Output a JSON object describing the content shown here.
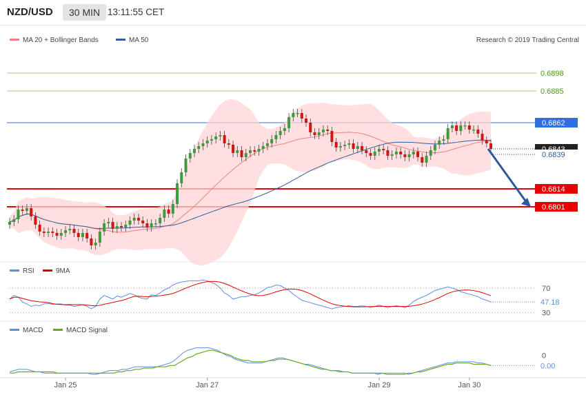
{
  "header": {
    "symbol": "NZD/USD",
    "timeframe": "30 MIN",
    "time": "13:11:55 CET"
  },
  "credit": "Research © 2019 Trading Central",
  "colors": {
    "bullish": "#3d9b3d",
    "bearish": "#d11414",
    "ma20": "#f08080",
    "ma50": "#2f5f9e",
    "band_fill": "#ffd4d4",
    "resistance": "#9bd17a",
    "pivot": "#2e6fe0",
    "support": "#e80000",
    "rsi": "#5f8de0",
    "rsi_ma": "#e00000",
    "macd": "#5f8de0",
    "macd_signal": "#66aa22",
    "arrow": "#2b5aa0",
    "last": "#222222"
  },
  "chart_data": [
    {
      "type": "candlestick",
      "name": "price",
      "legend": [
        "MA 20 + Bollinger Bands",
        "MA 50"
      ],
      "x_ticks": [
        "Jan 25",
        "Jan 27",
        "Jan 29",
        "Jan 30"
      ],
      "ylim": [
        0.6765,
        0.6915
      ],
      "levels": [
        {
          "value": 0.6898,
          "label": "0.6898",
          "kind": "resistance"
        },
        {
          "value": 0.6885,
          "label": "0.6885",
          "kind": "resistance"
        },
        {
          "value": 0.6862,
          "label": "0.6862",
          "kind": "pivot"
        },
        {
          "value": 0.6814,
          "label": "0.6814",
          "kind": "support"
        },
        {
          "value": 0.6801,
          "label": "0.6801",
          "kind": "support"
        }
      ],
      "last_price": "0.6843",
      "ma50_last": "0.6839",
      "forecast_target": 0.6801,
      "closes": [
        0.679,
        0.6792,
        0.6799,
        0.6798,
        0.68,
        0.6794,
        0.6788,
        0.6783,
        0.6782,
        0.6783,
        0.6782,
        0.678,
        0.6782,
        0.6784,
        0.6785,
        0.6782,
        0.6779,
        0.6782,
        0.6778,
        0.6773,
        0.6775,
        0.6783,
        0.6789,
        0.679,
        0.6785,
        0.6787,
        0.6786,
        0.6788,
        0.6791,
        0.6793,
        0.6791,
        0.6789,
        0.6786,
        0.6789,
        0.6789,
        0.6793,
        0.6799,
        0.6796,
        0.6803,
        0.6818,
        0.6826,
        0.6836,
        0.684,
        0.6843,
        0.6845,
        0.6847,
        0.6849,
        0.685,
        0.6852,
        0.6853,
        0.6847,
        0.6846,
        0.684,
        0.6842,
        0.6837,
        0.684,
        0.6842,
        0.6841,
        0.6843,
        0.6845,
        0.6847,
        0.685,
        0.6853,
        0.6856,
        0.6858,
        0.6866,
        0.6869,
        0.6869,
        0.6865,
        0.6862,
        0.6855,
        0.6853,
        0.6855,
        0.6857,
        0.6856,
        0.6848,
        0.6844,
        0.6845,
        0.6846,
        0.6847,
        0.6843,
        0.6845,
        0.6842,
        0.684,
        0.6838,
        0.6841,
        0.6843,
        0.6842,
        0.6838,
        0.6839,
        0.6841,
        0.6839,
        0.6837,
        0.6839,
        0.6841,
        0.6837,
        0.6833,
        0.6838,
        0.6842,
        0.6846,
        0.6849,
        0.685,
        0.6858,
        0.686,
        0.6856,
        0.686,
        0.686,
        0.6857,
        0.6857,
        0.6854,
        0.6849,
        0.6847,
        0.6843
      ],
      "x_tick_index": [
        13,
        46,
        86,
        107
      ]
    },
    {
      "type": "line",
      "name": "RSI",
      "legend": [
        "RSI",
        "9MA"
      ],
      "levels": [
        {
          "value": 70,
          "label": "70"
        },
        {
          "value": 30,
          "label": "30"
        }
      ],
      "ylim": [
        18,
        88
      ],
      "last_value": "47.18",
      "rsi": [
        52,
        58,
        55,
        47,
        44,
        40,
        42,
        41,
        44,
        45,
        43,
        44,
        44,
        42,
        42,
        40,
        41,
        43,
        40,
        36,
        40,
        52,
        58,
        55,
        52,
        57,
        55,
        58,
        61,
        59,
        55,
        53,
        52,
        59,
        58,
        62,
        67,
        70,
        75,
        78,
        80,
        81,
        82,
        82,
        82,
        83,
        82,
        79,
        76,
        70,
        62,
        58,
        52,
        54,
        56,
        56,
        58,
        59,
        62,
        66,
        71,
        72,
        75,
        74,
        70,
        66,
        60,
        55,
        50,
        48,
        46,
        44,
        42,
        40,
        38,
        36,
        38,
        39,
        40,
        41,
        40,
        40,
        41,
        40,
        38,
        40,
        42,
        40,
        38,
        40,
        41,
        40,
        38,
        42,
        48,
        52,
        55,
        58,
        62,
        66,
        68,
        70,
        72,
        70,
        68,
        64,
        62,
        60,
        58,
        56,
        52,
        50,
        47.18
      ]
    },
    {
      "type": "line",
      "name": "MACD",
      "legend": [
        "MACD",
        "MACD Signal"
      ],
      "ylim": [
        -0.0016,
        0.0014
      ],
      "levels": [
        {
          "value": 0,
          "label": "0"
        }
      ],
      "last_value": "0.00",
      "macd": [
        -0.0013,
        -0.0012,
        -0.0011,
        -0.0011,
        -0.0011,
        -0.0012,
        -0.0013,
        -0.0013,
        -0.0014,
        -0.0014,
        -0.0014,
        -0.0014,
        -0.0014,
        -0.0014,
        -0.0014,
        -0.0014,
        -0.0014,
        -0.0014,
        -0.0014,
        -0.0015,
        -0.0015,
        -0.0014,
        -0.0013,
        -0.0012,
        -0.0012,
        -0.0012,
        -0.0011,
        -0.0011,
        -0.001,
        -0.0009,
        -0.0009,
        -0.0009,
        -0.0009,
        -0.0009,
        -0.0009,
        -0.0008,
        -0.0007,
        -0.0006,
        -0.0004,
        -0.0001,
        0.0002,
        0.0004,
        0.0005,
        0.0006,
        0.0006,
        0.0006,
        0.0006,
        0.0005,
        0.0004,
        0.0002,
        0.0,
        -0.0001,
        -0.0003,
        -0.0004,
        -0.0005,
        -0.0006,
        -0.0006,
        -0.0006,
        -0.0006,
        -0.0005,
        -0.0004,
        -0.0003,
        -0.0002,
        -0.0002,
        -0.0003,
        -0.0004,
        -0.0005,
        -0.0006,
        -0.0007,
        -0.0007,
        -0.0008,
        -0.0009,
        -0.001,
        -0.0011,
        -0.0012,
        -0.0012,
        -0.0012,
        -0.0013,
        -0.0013,
        -0.0014,
        -0.0014,
        -0.0014,
        -0.0014,
        -0.0014,
        -0.0014,
        -0.0015,
        -0.0014,
        -0.0014,
        -0.0014,
        -0.0014,
        -0.0014,
        -0.0014,
        -0.0015,
        -0.0014,
        -0.0013,
        -0.0012,
        -0.0011,
        -0.001,
        -0.0009,
        -0.0008,
        -0.0007,
        -0.0006,
        -0.0006,
        -0.0005,
        -0.0005,
        -0.0005,
        -0.0005,
        -0.0005,
        -0.0006,
        -0.0006,
        -0.0007,
        -0.0008
      ],
      "signal": [
        -0.0014,
        -0.0014,
        -0.0013,
        -0.0013,
        -0.0013,
        -0.0013,
        -0.0013,
        -0.0013,
        -0.0013,
        -0.0013,
        -0.0013,
        -0.0014,
        -0.0014,
        -0.0014,
        -0.0014,
        -0.0014,
        -0.0014,
        -0.0014,
        -0.0014,
        -0.0014,
        -0.0014,
        -0.0014,
        -0.0014,
        -0.0014,
        -0.0014,
        -0.0013,
        -0.0013,
        -0.0012,
        -0.0012,
        -0.0011,
        -0.0011,
        -0.001,
        -0.001,
        -0.001,
        -0.0009,
        -0.0009,
        -0.0009,
        -0.0008,
        -0.0008,
        -0.0006,
        -0.0004,
        -0.0002,
        -0.0001,
        0.0001,
        0.0002,
        0.0003,
        0.0004,
        0.0004,
        0.0003,
        0.0002,
        0.0001,
        0.0,
        -0.0002,
        -0.0003,
        -0.0004,
        -0.0004,
        -0.0005,
        -0.0005,
        -0.0005,
        -0.0005,
        -0.0004,
        -0.0004,
        -0.0003,
        -0.0003,
        -0.0003,
        -0.0004,
        -0.0005,
        -0.0006,
        -0.0007,
        -0.0008,
        -0.0009,
        -0.001,
        -0.0011,
        -0.0011,
        -0.0012,
        -0.0012,
        -0.0013,
        -0.0013,
        -0.0013,
        -0.0014,
        -0.0014,
        -0.0014,
        -0.0014,
        -0.0014,
        -0.0014,
        -0.0014,
        -0.0014,
        -0.0015,
        -0.0015,
        -0.0015,
        -0.0015,
        -0.0015,
        -0.0014,
        -0.0014,
        -0.0013,
        -0.0013,
        -0.0012,
        -0.0011,
        -0.001,
        -0.0009,
        -0.0008,
        -0.0007,
        -0.0007,
        -0.0006,
        -0.0006,
        -0.0006,
        -0.0006,
        -0.0007,
        -0.0007,
        -0.0007,
        -0.0007,
        -0.0008
      ]
    }
  ]
}
